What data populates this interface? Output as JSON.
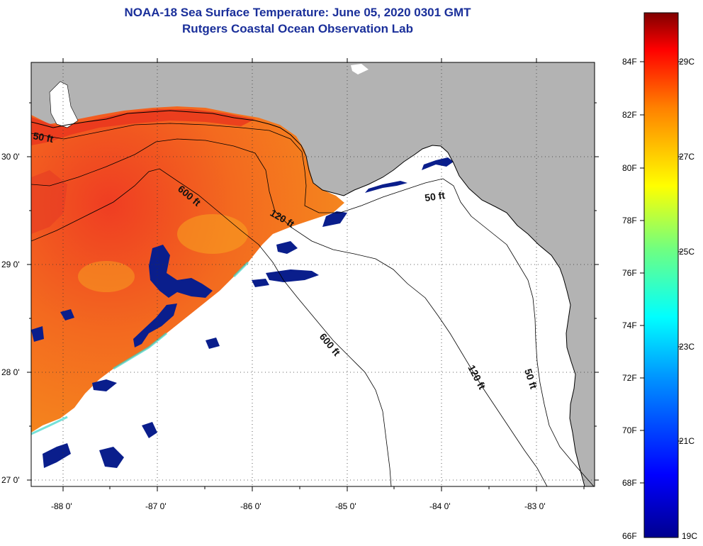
{
  "title": "NOAA-18 Sea Surface Temperature:  June 05, 2020 0301 GMT",
  "subtitle": "Rutgers Coastal Ocean Observation Lab",
  "axes": {
    "lat_labels": [
      "30 0'",
      "29 0'",
      "28 0'",
      "27 0'"
    ],
    "lon_labels": [
      "-88 0'",
      "-87 0'",
      "-86 0'",
      "-85 0'",
      "-84 0'",
      "-83 0'"
    ]
  },
  "contours": {
    "label_50_west": "50 ft",
    "label_50_east": "50 ft",
    "label_50_south": "50 ft",
    "label_120_north": "120 ft",
    "label_120_south": "120 ft",
    "label_600_north": "600 ft",
    "label_600_south": "600 ft"
  },
  "colorbar": {
    "fahrenheit": [
      "84F",
      "82F",
      "80F",
      "78F",
      "76F",
      "74F",
      "72F",
      "70F",
      "68F",
      "66F"
    ],
    "celsius": [
      "29C",
      "27C",
      "25C",
      "23C",
      "21C",
      "19C"
    ]
  },
  "colors": {
    "title": "#1a2f9a",
    "land": "#b3b3b3",
    "warm": "#f05a1e",
    "cold": "#0a1e8c"
  }
}
